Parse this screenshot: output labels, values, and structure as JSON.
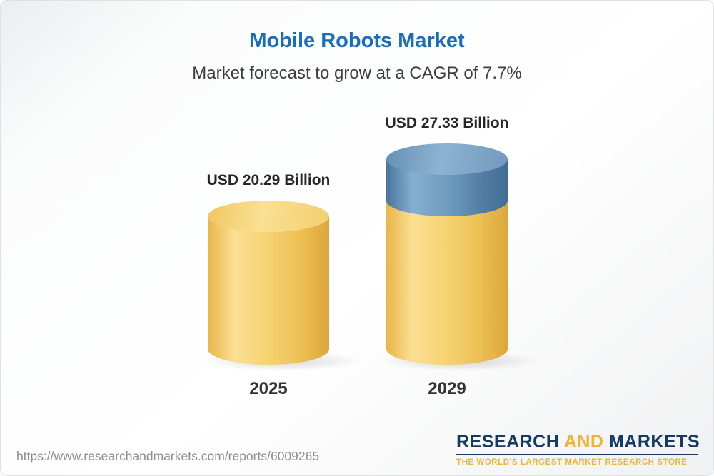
{
  "header": {
    "title": "Mobile Robots Market",
    "subtitle": "Market forecast to grow at a CAGR of 7.7%"
  },
  "chart_data": {
    "type": "bar",
    "bar_style": "3d-cylinder",
    "title": "Mobile Robots Market",
    "subtitle": "Market forecast to grow at a CAGR of 7.7%",
    "cagr_pct": 7.7,
    "categories": [
      "2025",
      "2029"
    ],
    "values": [
      20.29,
      27.33
    ],
    "unit": "USD Billion",
    "value_labels": [
      "USD 20.29 Billion",
      "USD 27.33 Billion"
    ],
    "legend": "none",
    "grid": false,
    "colors": {
      "base_segment": "#f2c45c",
      "growth_segment": "#5b8cb8",
      "title_text": "#1a6db8"
    }
  },
  "footer": {
    "url": "https://www.researchandmarkets.com/reports/6009265",
    "logo": {
      "part1": "RESEARCH",
      "part2": "AND",
      "part3": "MARKETS",
      "tagline": "THE WORLD'S LARGEST MARKET RESEARCH STORE"
    }
  }
}
